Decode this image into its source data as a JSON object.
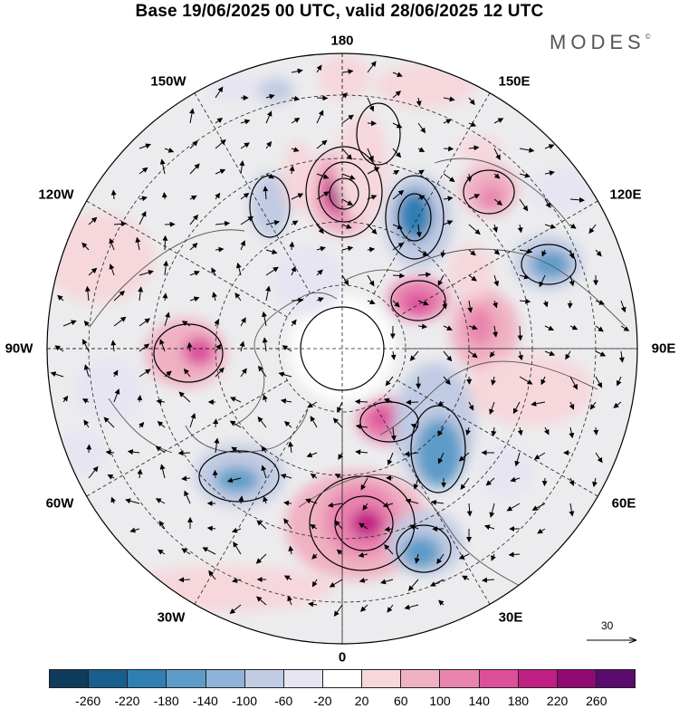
{
  "title": "Base 19/06/2025 00 UTC, valid 28/06/2025 12 UTC",
  "logo": {
    "text": "MODES",
    "mark": "©"
  },
  "longitude_labels": [
    "180",
    "150E",
    "120E",
    "90E",
    "60E",
    "30E",
    "0",
    "30W",
    "60W",
    "90W",
    "120W",
    "150W"
  ],
  "reference_vector": {
    "label": "30"
  },
  "colorbar": {
    "ticks": [
      "-260",
      "-220",
      "-180",
      "-140",
      "-100",
      "-60",
      "-20",
      "20",
      "60",
      "100",
      "140",
      "180",
      "220",
      "260"
    ],
    "colors": [
      "#0f3b5c",
      "#165f8f",
      "#2f7fb4",
      "#5d9bc8",
      "#8fb3d8",
      "#c1cbe3",
      "#e7e5f1",
      "#ffffff",
      "#f6d7dc",
      "#f0b1c3",
      "#e984af",
      "#dc4f9b",
      "#c01f84",
      "#8e0a72",
      "#5a0b6e"
    ]
  },
  "map": {
    "projection": "north polar stereographic",
    "graticule": "dashed",
    "features": [
      "shaded anomaly",
      "contours",
      "wind arrows",
      "coastlines"
    ]
  }
}
